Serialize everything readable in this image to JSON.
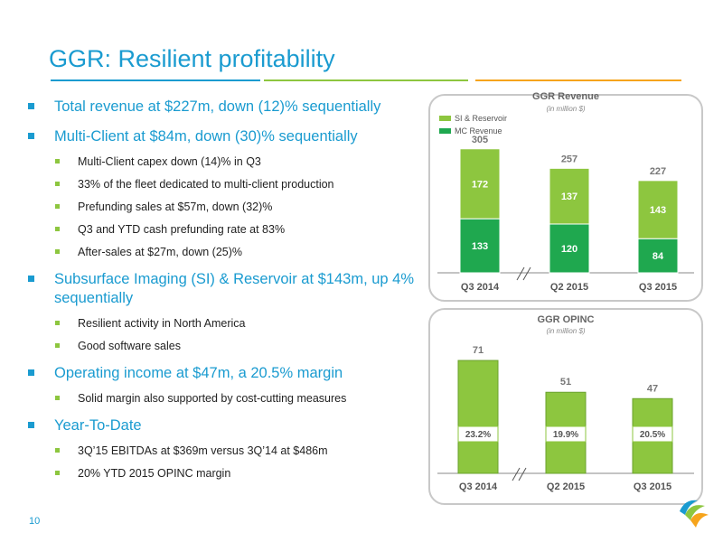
{
  "title": "GGR: Resilient profitability",
  "page_number": "10",
  "bullets": [
    {
      "text": "Total revenue at $227m, down (12)% sequentially",
      "sub": []
    },
    {
      "text": "Multi-Client at $84m, down (30)% sequentially",
      "sub": [
        "Multi-Client capex down (14)% in Q3",
        "33% of the fleet dedicated to multi-client production",
        "Prefunding sales at $57m, down (32)%",
        "Q3 and YTD cash prefunding rate at 83%",
        "After-sales at $27m, down (25)%"
      ]
    },
    {
      "text": "Subsurface Imaging (SI) & Reservoir at $143m, up 4% sequentially",
      "sub": [
        "Resilient activity in North America",
        "Good software sales"
      ]
    },
    {
      "text": "Operating income at $47m, a 20.5% margin",
      "sub": [
        "Solid margin also supported by cost-cutting measures"
      ]
    },
    {
      "text": "Year-To-Date",
      "sub": [
        "3Q’15 EBITDAs at $369m versus 3Q’14 at $486m",
        "20% YTD 2015 OPINC margin"
      ]
    }
  ],
  "colors": {
    "accent": "#1a9bd0",
    "green_light": "#8dc63f",
    "green_dark": "#1fa84f",
    "orange": "#f6a41c"
  },
  "chart_data": [
    {
      "type": "bar",
      "stacked": true,
      "title": "GGR Revenue",
      "subtitle": "(in million $)",
      "categories": [
        "Q3 2014",
        "Q2 2015",
        "Q3 2015"
      ],
      "totals": [
        305,
        257,
        227
      ],
      "series": [
        {
          "name": "MC Revenue",
          "values": [
            133,
            120,
            84
          ],
          "color": "#1fa84f"
        },
        {
          "name": "SI & Reservoir",
          "values": [
            172,
            137,
            143
          ],
          "color": "#8dc63f"
        }
      ],
      "axis_break": true
    },
    {
      "type": "bar",
      "title": "GGR OPINC",
      "subtitle": "(in million $)",
      "categories": [
        "Q3 2014",
        "Q2 2015",
        "Q3 2015"
      ],
      "values": [
        71,
        51,
        47
      ],
      "margins": [
        "23.2%",
        "19.9%",
        "20.5%"
      ],
      "color": "#8dc63f",
      "axis_break": true
    }
  ]
}
